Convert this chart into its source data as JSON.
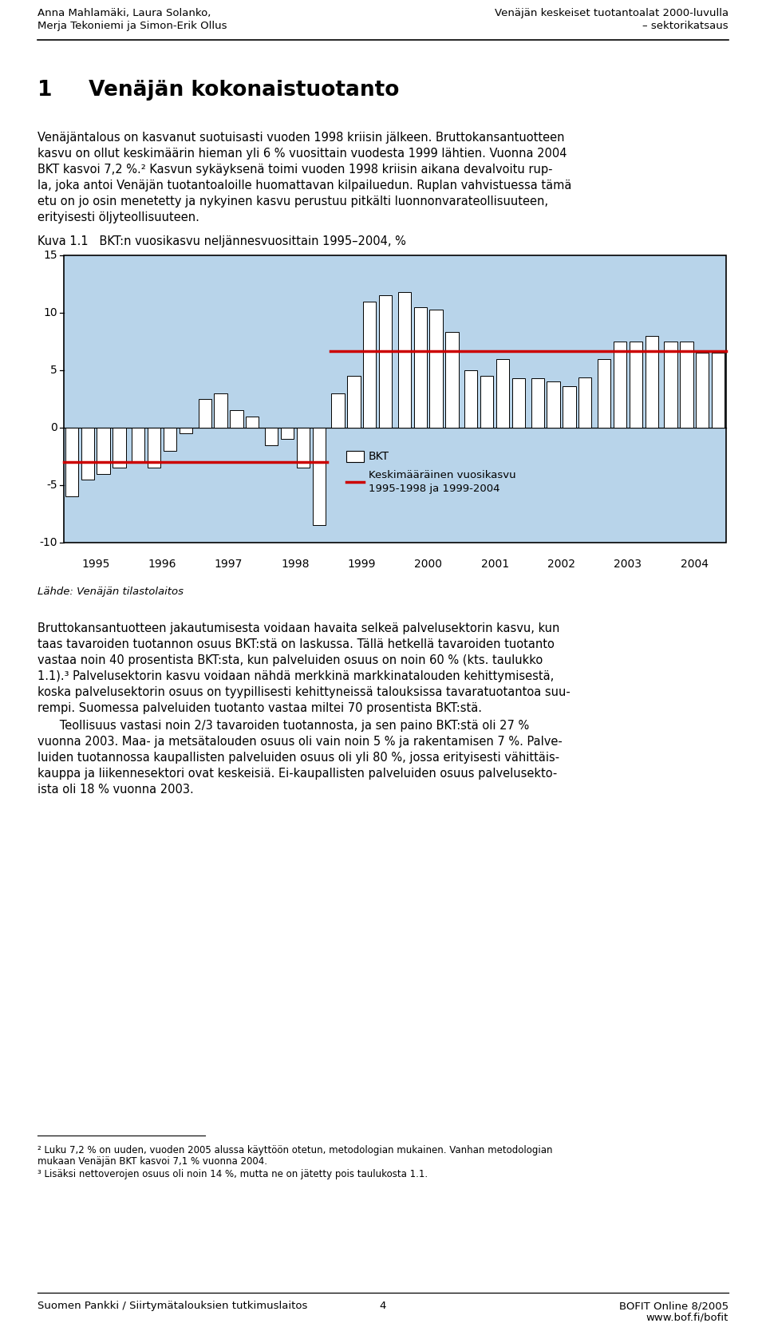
{
  "title": "Kuva 1.1   BKT:n vuosikasvu neljännesvuosittain 1995–2004, %",
  "header_left_line1": "Anna Mahlamäki, Laura Solanko,",
  "header_left_line2": "Merja Tekoniemi ja Simon-Erik Ollus",
  "header_right_line1": "Venäjän keskeiset tuotantoalat 2000-luvulla",
  "header_right_line2": "– sektorikatsaus",
  "section_title": "1     Venäjän kokonaistuotanto",
  "bar_values": [
    -6.0,
    -4.5,
    -4.0,
    -3.5,
    -3.0,
    -3.5,
    -2.0,
    -0.5,
    2.5,
    3.0,
    1.5,
    1.0,
    -1.5,
    -1.0,
    -3.5,
    -8.5,
    3.0,
    4.5,
    11.0,
    11.5,
    11.8,
    10.5,
    10.3,
    8.3,
    5.0,
    4.5,
    6.0,
    4.3,
    4.3,
    4.0,
    3.6,
    4.4,
    6.0,
    7.5,
    7.5,
    8.0,
    7.5,
    7.5,
    6.5,
    6.5
  ],
  "years": [
    1995,
    1996,
    1997,
    1998,
    1999,
    2000,
    2001,
    2002,
    2003,
    2004
  ],
  "mean_1995_1998": -3.0,
  "mean_1999_2004": 6.7,
  "ylim": [
    -10,
    15
  ],
  "yticks": [
    -10,
    -5,
    0,
    5,
    10,
    15
  ],
  "bar_color": "#ffffff",
  "bar_edge_color": "#000000",
  "background_color": "#b8d4ea",
  "mean_line_color": "#cc0000",
  "legend_bkt_label": "BKT",
  "legend_mean_label": "Keskimääräinen vuosikasvu\n1995-1998 ja 1999-2004",
  "source_text": "Lähde: Venäjän tilastolaitos",
  "footer_left": "Suomen Pankki / Siirtymätalouksien tutkimuslaitos",
  "footer_center": "4",
  "footer_right_line1": "BOFIT Online 8/2005",
  "footer_right_line2": "www.bof.fi/bofit",
  "footnote2_line1": "² Luku 7,2 % on uuden, vuoden 2005 alussa käyttöön otetun, metodologian mukainen. Vanhan metodologian",
  "footnote2_line2": "mukaan Venäjän BKT kasvoi 7,1 % vuonna 2004.",
  "footnote3": "³ Lisäksi nettoverojen osuus oli noin 14 %, mutta ne on jätetty pois taulukosta 1.1."
}
